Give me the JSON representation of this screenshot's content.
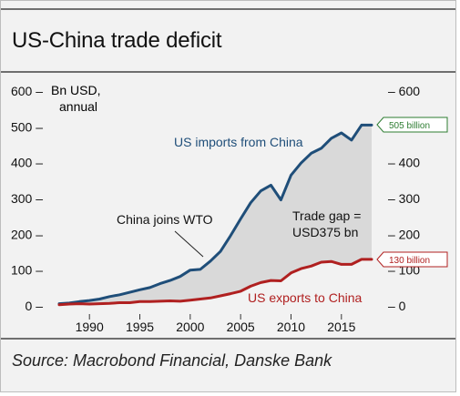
{
  "title": "US-China trade deficit",
  "source": "Source: Macrobond Financial, Danske Bank",
  "chart_data": {
    "type": "line",
    "ylabel": "Bn USD, annual",
    "x": [
      1987,
      1988,
      1989,
      1990,
      1991,
      1992,
      1993,
      1994,
      1995,
      1996,
      1997,
      1998,
      1999,
      2000,
      2001,
      2002,
      2003,
      2004,
      2005,
      2006,
      2007,
      2008,
      2009,
      2010,
      2011,
      2012,
      2013,
      2014,
      2015,
      2016,
      2017,
      2018
    ],
    "series": [
      {
        "name": "US imports from China",
        "color": "#1f4e79",
        "values": [
          6,
          8,
          12,
          15,
          19,
          26,
          31,
          38,
          45,
          51,
          62,
          71,
          82,
          100,
          102,
          125,
          152,
          196,
          243,
          288,
          321,
          337,
          296,
          365,
          399,
          426,
          440,
          468,
          483,
          463,
          505,
          505
        ]
      },
      {
        "name": "US exports to China",
        "color": "#b02020",
        "values": [
          3,
          5,
          6,
          5,
          6,
          7,
          9,
          9,
          12,
          12,
          13,
          14,
          13,
          16,
          19,
          22,
          28,
          34,
          41,
          55,
          65,
          71,
          70,
          92,
          104,
          111,
          122,
          124,
          116,
          116,
          130,
          130
        ]
      }
    ],
    "xticks": [
      "1990",
      "1995",
      "2000",
      "2005",
      "2010",
      "2015"
    ],
    "xtick_values": [
      1990,
      1995,
      2000,
      2005,
      2010,
      2015
    ],
    "xlim": [
      1987,
      2018
    ],
    "ylim": [
      0,
      600
    ],
    "yticks_left": [
      "0 –",
      "100 –",
      "200 –",
      "300 –",
      "400 –",
      "500 –",
      "600 –"
    ],
    "yticks_right": [
      "– 0",
      "– 100",
      "– 200",
      "– 300",
      "– 400",
      "– 500",
      "– 600"
    ],
    "ytick_values": [
      0,
      100,
      200,
      300,
      400,
      500,
      600
    ],
    "gap_fill_color": "#d9d9d9",
    "annotations": {
      "imports_label": "US imports from China",
      "exports_label": "US exports to China",
      "wto_label": "China joins WTO",
      "gap_line1": "Trade gap =",
      "gap_line2": "USD375 bn",
      "imports_tag": "505 billion",
      "exports_tag": "130 billion"
    },
    "grid": false
  }
}
